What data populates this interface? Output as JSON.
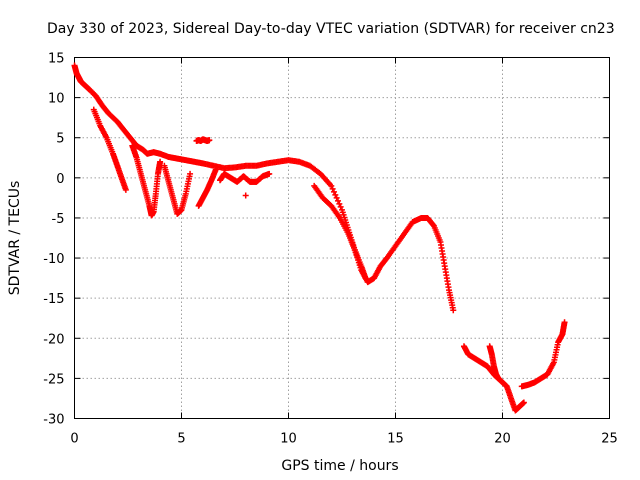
{
  "chart_data": {
    "type": "scatter",
    "title": "Day 330 of 2023, Sidereal Day-to-day VTEC variation (SDTVAR) for receiver cn23",
    "xlabel": "GPS time / hours",
    "ylabel": "SDTVAR / TECUs",
    "xlim": [
      0,
      25
    ],
    "ylim": [
      -30,
      15
    ],
    "xticks": [
      0,
      5,
      10,
      15,
      20,
      25
    ],
    "yticks": [
      -30,
      -25,
      -20,
      -15,
      -10,
      -5,
      0,
      5,
      10,
      15
    ],
    "grid": true,
    "marker": "+",
    "color": "#ff0000",
    "series": [
      {
        "name": "main-trend",
        "x": [
          0.0,
          0.1,
          0.2,
          0.3,
          0.5,
          0.7,
          1.0,
          1.3,
          1.6,
          2.0,
          2.3,
          2.6,
          2.9,
          3.2,
          3.4,
          3.7,
          4.0,
          4.4,
          4.8,
          5.2,
          5.6,
          6.0,
          6.5,
          7.0,
          7.5,
          8.0,
          8.5,
          9.0,
          9.5,
          10.0,
          10.5,
          11.0,
          11.5,
          12.0,
          12.5,
          12.8,
          13.1,
          13.4,
          13.7,
          14.0,
          14.3,
          14.6,
          15.0,
          15.4,
          15.8,
          16.2,
          16.5,
          16.8,
          17.1,
          17.3,
          17.5,
          17.7
        ],
        "y": [
          14,
          13,
          12.5,
          12,
          11.5,
          11,
          10.2,
          9,
          8,
          7,
          6,
          5,
          4,
          3.5,
          3,
          3.2,
          3,
          2.6,
          2.4,
          2.2,
          2.0,
          1.8,
          1.5,
          1.2,
          1.3,
          1.5,
          1.5,
          1.8,
          2.0,
          2.2,
          2.0,
          1.5,
          0.5,
          -1,
          -4,
          -6.5,
          -9,
          -11.5,
          -13,
          -12.5,
          -11,
          -10,
          -8.5,
          -7,
          -5.5,
          -5,
          -5,
          -6,
          -8,
          -11,
          -14,
          -16.5
        ]
      },
      {
        "name": "branch-early-low",
        "x": [
          0.9,
          1.2,
          1.5,
          1.8,
          2.0,
          2.2,
          2.4
        ],
        "y": [
          8.5,
          6.5,
          5,
          3,
          1.5,
          0,
          -1.5
        ]
      },
      {
        "name": "branch-dip-3h",
        "x": [
          2.7,
          2.9,
          3.1,
          3.3,
          3.5,
          3.6,
          3.7,
          3.8,
          3.9,
          4.0
        ],
        "y": [
          4,
          2.5,
          0.5,
          -1.5,
          -3.5,
          -4.7,
          -4.2,
          -2,
          0.5,
          2
        ]
      },
      {
        "name": "branch-dip-5h",
        "x": [
          4.2,
          4.4,
          4.6,
          4.8,
          5.0,
          5.2,
          5.4
        ],
        "y": [
          1.5,
          -0.5,
          -2.5,
          -4.5,
          -4,
          -2,
          0.5
        ]
      },
      {
        "name": "branch-dip-6h",
        "x": [
          5.8,
          6.0,
          6.2,
          6.4,
          6.6
        ],
        "y": [
          -3.5,
          -2.5,
          -1.5,
          -0.3,
          1
        ]
      },
      {
        "name": "cluster-6h-high",
        "x": [
          5.7,
          5.8,
          5.9,
          6.0,
          6.1,
          6.2,
          6.3
        ],
        "y": [
          4.6,
          4.7,
          4.6,
          4.8,
          4.7,
          4.6,
          4.7
        ]
      },
      {
        "name": "branch-7h",
        "x": [
          6.8,
          7.0,
          7.3,
          7.6,
          7.9,
          8.2,
          8.5,
          8.8,
          9.1
        ],
        "y": [
          -0.3,
          0.5,
          0.0,
          -0.5,
          0.2,
          -0.5,
          -0.5,
          0.2,
          0.5
        ]
      },
      {
        "name": "isolated-8h",
        "x": [
          8.0
        ],
        "y": [
          -2.2
        ]
      },
      {
        "name": "branch-11h",
        "x": [
          11.2,
          11.6,
          12.0,
          12.4,
          12.8,
          13.1,
          13.4,
          13.6
        ],
        "y": [
          -1,
          -2.5,
          -3.5,
          -5,
          -7,
          -9,
          -11,
          -12.5
        ]
      },
      {
        "name": "late-cluster",
        "x": [
          18.2,
          18.4,
          18.7,
          19.0,
          19.3,
          19.6,
          19.8,
          20.0,
          20.2,
          20.4,
          20.6,
          20.8,
          21.0
        ],
        "y": [
          -21,
          -22,
          -22.5,
          -23,
          -23.5,
          -24.5,
          -25,
          -25.5,
          -26,
          -27.5,
          -29,
          -28.5,
          -28
        ]
      },
      {
        "name": "late-spike-19.6h",
        "x": [
          19.4,
          19.5,
          19.6,
          19.7,
          19.8
        ],
        "y": [
          -21,
          -22,
          -23.5,
          -24.5,
          -25
        ]
      },
      {
        "name": "end-tail",
        "x": [
          20.9,
          21.2,
          21.5,
          21.8,
          22.1,
          22.4,
          22.6,
          22.8,
          22.9
        ],
        "y": [
          -26,
          -25.8,
          -25.5,
          -25,
          -24.5,
          -23,
          -20.5,
          -19.5,
          -18
        ]
      }
    ]
  }
}
